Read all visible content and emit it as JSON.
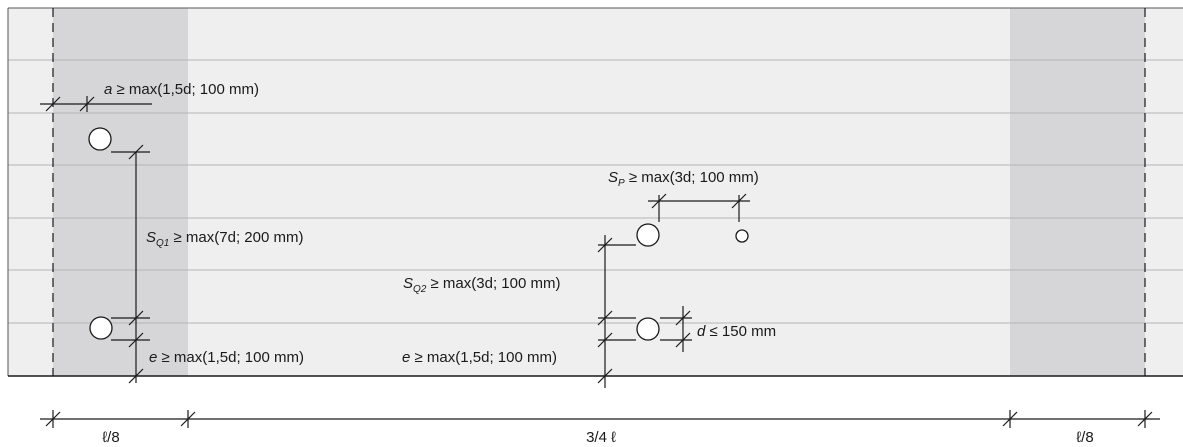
{
  "labels": {
    "a_sym": "a",
    "a_rest": " ≥ max(1,5d; 100 mm)",
    "sq1_s": "S",
    "sq1_sub": "Q1",
    "sq1_rest": " ≥ max(7d; 200 mm)",
    "sp_s": "S",
    "sp_sub": "P",
    "sp_rest": " ≥ max(3d; 100 mm)",
    "sq2_s": "S",
    "sq2_sub": "Q2",
    "sq2_rest": " ≥ max(3d; 100 mm)",
    "d_sym": "d",
    "d_rest": " ≤ 150 mm",
    "e_left_sym": "e",
    "e_left_rest": " ≥ max(1,5d; 100 mm)",
    "e_mid_sym": "e",
    "e_mid_rest": " ≥ max(1,5d; 100 mm)",
    "span_left": "ℓ/8",
    "span_mid": "3/4 ℓ",
    "span_right": "ℓ/8"
  },
  "colors": {
    "board": "#efefef",
    "end_zone": "#d6d6d8",
    "board_joint": "#b4b4b4",
    "line": "#1a1a1a"
  }
}
